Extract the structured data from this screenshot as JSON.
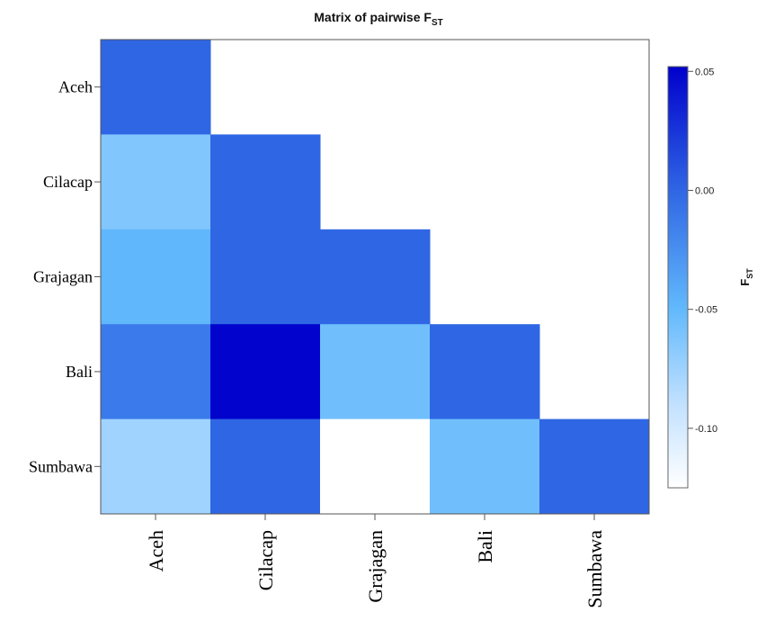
{
  "chart_data": {
    "type": "heatmap",
    "title_main": "Matrix of pairwise F",
    "title_sub": "ST",
    "rows": [
      "Aceh",
      "Cilacap",
      "Grajagan",
      "Bali",
      "Sumbawa"
    ],
    "columns": [
      "Aceh",
      "Cilacap",
      "Grajagan",
      "Bali",
      "Sumbawa"
    ],
    "values": [
      [
        0.0,
        null,
        null,
        null,
        null
      ],
      [
        -0.063,
        0.0,
        null,
        null,
        null
      ],
      [
        -0.049,
        0.0,
        0.0,
        null,
        null
      ],
      [
        -0.012,
        0.05,
        -0.056,
        0.0,
        null
      ],
      [
        -0.076,
        0.0,
        -0.125,
        -0.056,
        0.0
      ]
    ],
    "colorbar": {
      "label_main": "F",
      "label_sub": "ST",
      "min": -0.125,
      "max": 0.052,
      "ticks": [
        0.05,
        0.0,
        -0.05,
        -0.1
      ],
      "tick_labels": [
        "0.05",
        "0.00",
        "-0.05",
        "-0.10"
      ],
      "colors": [
        "#ffffff",
        "#c2e1ff",
        "#62b9fc",
        "#2f66e4",
        "#0000cc"
      ],
      "stops": [
        -0.125,
        -0.09,
        -0.05,
        0.0,
        0.052
      ]
    }
  }
}
